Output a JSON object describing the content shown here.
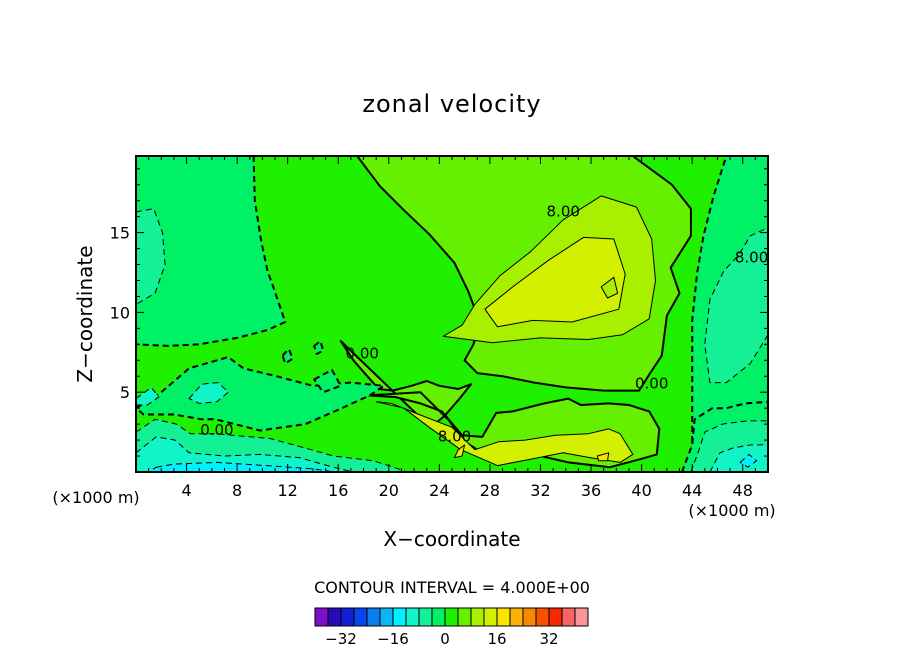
{
  "chart_data": {
    "type": "contour",
    "title": "zonal velocity",
    "xlabel": "X−coordinate",
    "ylabel": "Z−coordinate",
    "x_unit_left": "(×1000 m)",
    "x_unit_right": "(×1000 m)",
    "xlim": [
      0,
      50
    ],
    "ylim": [
      0,
      19.8
    ],
    "x_ticks": [
      4,
      8,
      12,
      16,
      20,
      24,
      28,
      32,
      36,
      40,
      44,
      48
    ],
    "y_ticks": [
      5,
      10,
      15
    ],
    "contour_interval_text": "CONTOUR INTERVAL = 4.000E+00",
    "contour_interval": 4,
    "contour_labels": [
      {
        "text": "8.00",
        "x": 33.8,
        "y": 16.3
      },
      {
        "text": "8.00",
        "x": 48.7,
        "y": 13.4
      },
      {
        "text": "0.00",
        "x": 17.9,
        "y": 7.4
      },
      {
        "text": "0.00",
        "x": 40.8,
        "y": 5.5
      },
      {
        "text": "0.00",
        "x": 6.4,
        "y": 2.6
      },
      {
        "text": "8.00",
        "x": 25.2,
        "y": 2.2
      }
    ],
    "colorbar": {
      "min": -40,
      "max": 40,
      "step": 4,
      "tick_labels": [
        "−32",
        "−16",
        "0",
        "16",
        "32"
      ],
      "tick_values": [
        -32,
        -16,
        0,
        16,
        32
      ],
      "colors": [
        "#7a10c8",
        "#2a0ab4",
        "#141ed2",
        "#0a46ee",
        "#0a7ef0",
        "#0ab4f6",
        "#00f0ff",
        "#10f4c8",
        "#14f096",
        "#00f066",
        "#1ef000",
        "#64f000",
        "#a8f000",
        "#d2f000",
        "#f8e600",
        "#f8b400",
        "#f88800",
        "#f85000",
        "#f82800",
        "#f86464",
        "#f89696"
      ]
    },
    "field_regions": [
      {
        "level": 0,
        "pts": [
          [
            0,
            0
          ],
          [
            50,
            0
          ],
          [
            50,
            19.8
          ],
          [
            0,
            19.8
          ]
        ]
      },
      {
        "level": -4,
        "pts": [
          [
            9.3,
            19.8
          ],
          [
            9.4,
            17
          ],
          [
            9.9,
            14.5
          ],
          [
            10.4,
            12.6
          ],
          [
            10.9,
            11.5
          ],
          [
            11.8,
            9.4
          ],
          [
            10.4,
            8.9
          ],
          [
            8,
            8.4
          ],
          [
            5,
            8
          ],
          [
            2.5,
            7.9
          ],
          [
            0,
            8
          ],
          [
            0,
            19.8
          ]
        ]
      },
      {
        "level": -8,
        "pts": [
          [
            0,
            16.3
          ],
          [
            1.4,
            16.5
          ],
          [
            2.1,
            15
          ],
          [
            2.3,
            13
          ],
          [
            1.5,
            11.2
          ],
          [
            0,
            10.5
          ]
        ]
      },
      {
        "level": -4,
        "pts": [
          [
            44,
            0
          ],
          [
            44,
            9.5
          ],
          [
            44.4,
            12.5
          ],
          [
            44.9,
            14.8
          ],
          [
            45.7,
            17.3
          ],
          [
            46.7,
            19.8
          ],
          [
            50,
            19.8
          ],
          [
            50,
            0
          ]
        ]
      },
      {
        "level": -8,
        "pts": [
          [
            50,
            8.6
          ],
          [
            48.6,
            6.8
          ],
          [
            46.7,
            5.6
          ],
          [
            45.4,
            5.6
          ],
          [
            45,
            8
          ],
          [
            45.4,
            10.8
          ],
          [
            46.5,
            12.6
          ],
          [
            47.7,
            13.6
          ],
          [
            48.6,
            14.8
          ],
          [
            50,
            15.3
          ]
        ]
      },
      {
        "level": 4,
        "pts": [
          [
            17.5,
            19.8
          ],
          [
            19.3,
            17.9
          ],
          [
            21.2,
            16.4
          ],
          [
            23.2,
            14.9
          ],
          [
            25.2,
            13.1
          ],
          [
            26.3,
            11.3
          ],
          [
            27.2,
            9.4
          ],
          [
            26.7,
            8
          ],
          [
            26,
            7
          ],
          [
            27,
            6.2
          ],
          [
            29,
            6
          ],
          [
            31.5,
            5.6
          ],
          [
            34,
            5.3
          ],
          [
            37,
            5.1
          ],
          [
            39.8,
            5.1
          ],
          [
            40.6,
            6.1
          ],
          [
            41.6,
            7.3
          ],
          [
            42,
            9.8
          ],
          [
            43,
            11.2
          ],
          [
            42.3,
            12.8
          ],
          [
            43.9,
            14.8
          ],
          [
            43.9,
            16.5
          ],
          [
            42.4,
            18
          ],
          [
            39.3,
            19.8
          ]
        ]
      },
      {
        "level": 8,
        "pts": [
          [
            24.3,
            8.5
          ],
          [
            25.8,
            9.2
          ],
          [
            26.8,
            10.5
          ],
          [
            28.8,
            12.3
          ],
          [
            31.2,
            13.8
          ],
          [
            33.8,
            15.8
          ],
          [
            36.8,
            17.3
          ],
          [
            39.6,
            16.6
          ],
          [
            40.8,
            14.6
          ],
          [
            41.1,
            12
          ],
          [
            40.6,
            9.6
          ],
          [
            38.5,
            8.6
          ],
          [
            35.8,
            8.3
          ],
          [
            32,
            8.4
          ],
          [
            28.2,
            8.1
          ]
        ]
      },
      {
        "level": 12,
        "pts": [
          [
            27.6,
            10.2
          ],
          [
            29.8,
            11.6
          ],
          [
            32.7,
            13.3
          ],
          [
            35.4,
            14.7
          ],
          [
            37.8,
            14.6
          ],
          [
            38.7,
            12.4
          ],
          [
            38.2,
            10.2
          ],
          [
            34.5,
            9.4
          ],
          [
            31.4,
            9.5
          ],
          [
            28.6,
            9.1
          ]
        ]
      },
      {
        "level": 8,
        "pts": [
          [
            36.8,
            11.6
          ],
          [
            37.8,
            12.2
          ],
          [
            38.1,
            11.2
          ],
          [
            37.3,
            10.9
          ]
        ]
      },
      {
        "level": 4,
        "pts": [
          [
            16.2,
            8.2
          ],
          [
            17.2,
            7
          ],
          [
            18.3,
            6
          ],
          [
            19.2,
            5.2
          ],
          [
            20.3,
            5.1
          ],
          [
            21.8,
            5.4
          ],
          [
            23,
            5.7
          ],
          [
            24,
            5.4
          ],
          [
            25.5,
            5.2
          ],
          [
            26.5,
            5.5
          ],
          [
            25.6,
            4.6
          ],
          [
            24.4,
            3.5
          ],
          [
            23.3,
            2.8
          ]
        ]
      },
      {
        "level": 4,
        "pts": [
          [
            18.3,
            4.8
          ],
          [
            22.5,
            5
          ],
          [
            24.8,
            3.2
          ],
          [
            25.8,
            2
          ],
          [
            28,
            0.9
          ],
          [
            30.9,
            1.2
          ],
          [
            34.2,
            0.6
          ],
          [
            37.5,
            0.3
          ],
          [
            39.9,
            0.8
          ],
          [
            41.2,
            1.1
          ],
          [
            41.4,
            2.7
          ],
          [
            40.6,
            3.8
          ],
          [
            39,
            4.2
          ],
          [
            37.4,
            4.3
          ],
          [
            35.2,
            4.2
          ],
          [
            34.2,
            4.6
          ],
          [
            32.3,
            4.3
          ],
          [
            29.8,
            3.8
          ],
          [
            28.5,
            3.7
          ],
          [
            27.4,
            2.2
          ],
          [
            25.8,
            2.3
          ],
          [
            24.2,
            3.8
          ],
          [
            22.5,
            4.3
          ],
          [
            20.5,
            4.7
          ]
        ]
      },
      {
        "level": 12,
        "pts": [
          [
            19,
            4.4
          ],
          [
            21.2,
            4
          ],
          [
            23.2,
            2.8
          ],
          [
            25.7,
            1.4
          ],
          [
            28.6,
            0.4
          ],
          [
            31.2,
            0.8
          ],
          [
            33.8,
            1.2
          ],
          [
            35.9,
            0.9
          ],
          [
            38.3,
            0.6
          ],
          [
            39.3,
            1.1
          ],
          [
            38.3,
            2.4
          ],
          [
            37.4,
            2.7
          ],
          [
            35.8,
            2.4
          ],
          [
            33.2,
            2.3
          ],
          [
            30.8,
            2
          ],
          [
            28.7,
            1.9
          ],
          [
            26.8,
            1.4
          ],
          [
            25,
            2.8
          ],
          [
            22.4,
            3.6
          ],
          [
            20.2,
            4.3
          ]
        ]
      },
      {
        "level": 16,
        "pts": [
          [
            25.5,
            1.4
          ],
          [
            26,
            1.7
          ],
          [
            25.8,
            1
          ],
          [
            25.2,
            0.9
          ]
        ]
      },
      {
        "level": 16,
        "pts": [
          [
            36.5,
            1
          ],
          [
            37.4,
            1.2
          ],
          [
            37.3,
            0.7
          ],
          [
            36.6,
            0.7
          ]
        ]
      },
      {
        "level": -4,
        "pts": [
          [
            0,
            4
          ],
          [
            2,
            5
          ],
          [
            4.2,
            6.5
          ],
          [
            7.3,
            7.2
          ],
          [
            8.5,
            6.5
          ],
          [
            11.1,
            6
          ],
          [
            14,
            5.4
          ],
          [
            17,
            5.6
          ],
          [
            19.6,
            5.4
          ],
          [
            18.5,
            4.8
          ],
          [
            16,
            3.9
          ],
          [
            13.4,
            3
          ],
          [
            9.8,
            2.6
          ],
          [
            6.3,
            3.3
          ],
          [
            5.2,
            3.3
          ],
          [
            3,
            3.6
          ],
          [
            0.6,
            3.6
          ]
        ]
      },
      {
        "level": -8,
        "pts": [
          [
            0,
            2.5
          ],
          [
            1.5,
            3.3
          ],
          [
            3.2,
            3
          ],
          [
            4.3,
            2.4
          ],
          [
            6.4,
            2.4
          ],
          [
            7.6,
            2.3
          ],
          [
            10.6,
            2.1
          ],
          [
            13.4,
            1.5
          ],
          [
            15.6,
            1
          ],
          [
            18.8,
            0.7
          ],
          [
            21.5,
            0
          ],
          [
            0,
            0
          ]
        ]
      },
      {
        "level": -12,
        "pts": [
          [
            0,
            1.2
          ],
          [
            1.6,
            2.2
          ],
          [
            3.1,
            2
          ],
          [
            4.2,
            1.2
          ],
          [
            7,
            1
          ],
          [
            9.8,
            1.1
          ],
          [
            12.9,
            0.9
          ],
          [
            15.6,
            0.3
          ],
          [
            17.2,
            0
          ],
          [
            0,
            0
          ]
        ]
      },
      {
        "level": -16,
        "pts": [
          [
            1.6,
            0.3
          ],
          [
            3.1,
            0.5
          ],
          [
            6.4,
            0.6
          ],
          [
            10.3,
            0.4
          ],
          [
            14,
            0.2
          ],
          [
            15.7,
            0
          ],
          [
            1,
            0
          ]
        ]
      },
      {
        "level": -12,
        "pts": [
          [
            4.2,
            4.6
          ],
          [
            5.2,
            5.5
          ],
          [
            6.5,
            5.6
          ],
          [
            7.3,
            5
          ],
          [
            6.4,
            4.4
          ],
          [
            5,
            4.3
          ]
        ]
      },
      {
        "level": -12,
        "pts": [
          [
            0,
            4.6
          ],
          [
            1.2,
            5.3
          ],
          [
            1.8,
            4.7
          ],
          [
            0.9,
            4.2
          ],
          [
            0,
            4.2
          ]
        ]
      },
      {
        "level": -4,
        "pts": [
          [
            43.2,
            0
          ],
          [
            44,
            1.7
          ],
          [
            44.2,
            3.3
          ],
          [
            45.6,
            4
          ],
          [
            46.7,
            4
          ],
          [
            48.2,
            4.3
          ],
          [
            50,
            4.4
          ],
          [
            50,
            0
          ]
        ]
      },
      {
        "level": -8,
        "pts": [
          [
            43.9,
            0
          ],
          [
            44.5,
            1.3
          ],
          [
            45,
            2.5
          ],
          [
            46.4,
            3
          ],
          [
            48.4,
            3.2
          ],
          [
            50,
            3.2
          ],
          [
            50,
            0
          ]
        ]
      },
      {
        "level": -12,
        "pts": [
          [
            45.4,
            0
          ],
          [
            46.2,
            1.2
          ],
          [
            47.2,
            1.5
          ],
          [
            48.6,
            1.7
          ],
          [
            50,
            1.7
          ],
          [
            50,
            0
          ]
        ]
      },
      {
        "level": -16,
        "pts": [
          [
            47.8,
            0.6
          ],
          [
            48.5,
            1.1
          ],
          [
            49.1,
            0.7
          ],
          [
            48.4,
            0.3
          ]
        ]
      },
      {
        "level": -4,
        "pts": [
          [
            14.1,
            7.9
          ],
          [
            14.6,
            8.2
          ],
          [
            14.8,
            7.6
          ],
          [
            14.3,
            7.4
          ]
        ]
      },
      {
        "level": -4,
        "pts": [
          [
            14.1,
            5.8
          ],
          [
            15.5,
            6.4
          ],
          [
            16.2,
            5.4
          ],
          [
            14.8,
            5
          ]
        ]
      },
      {
        "level": -4,
        "pts": [
          [
            11.6,
            7.3
          ],
          [
            12.1,
            7.7
          ],
          [
            12.4,
            7.1
          ],
          [
            11.8,
            6.8
          ]
        ]
      }
    ]
  }
}
